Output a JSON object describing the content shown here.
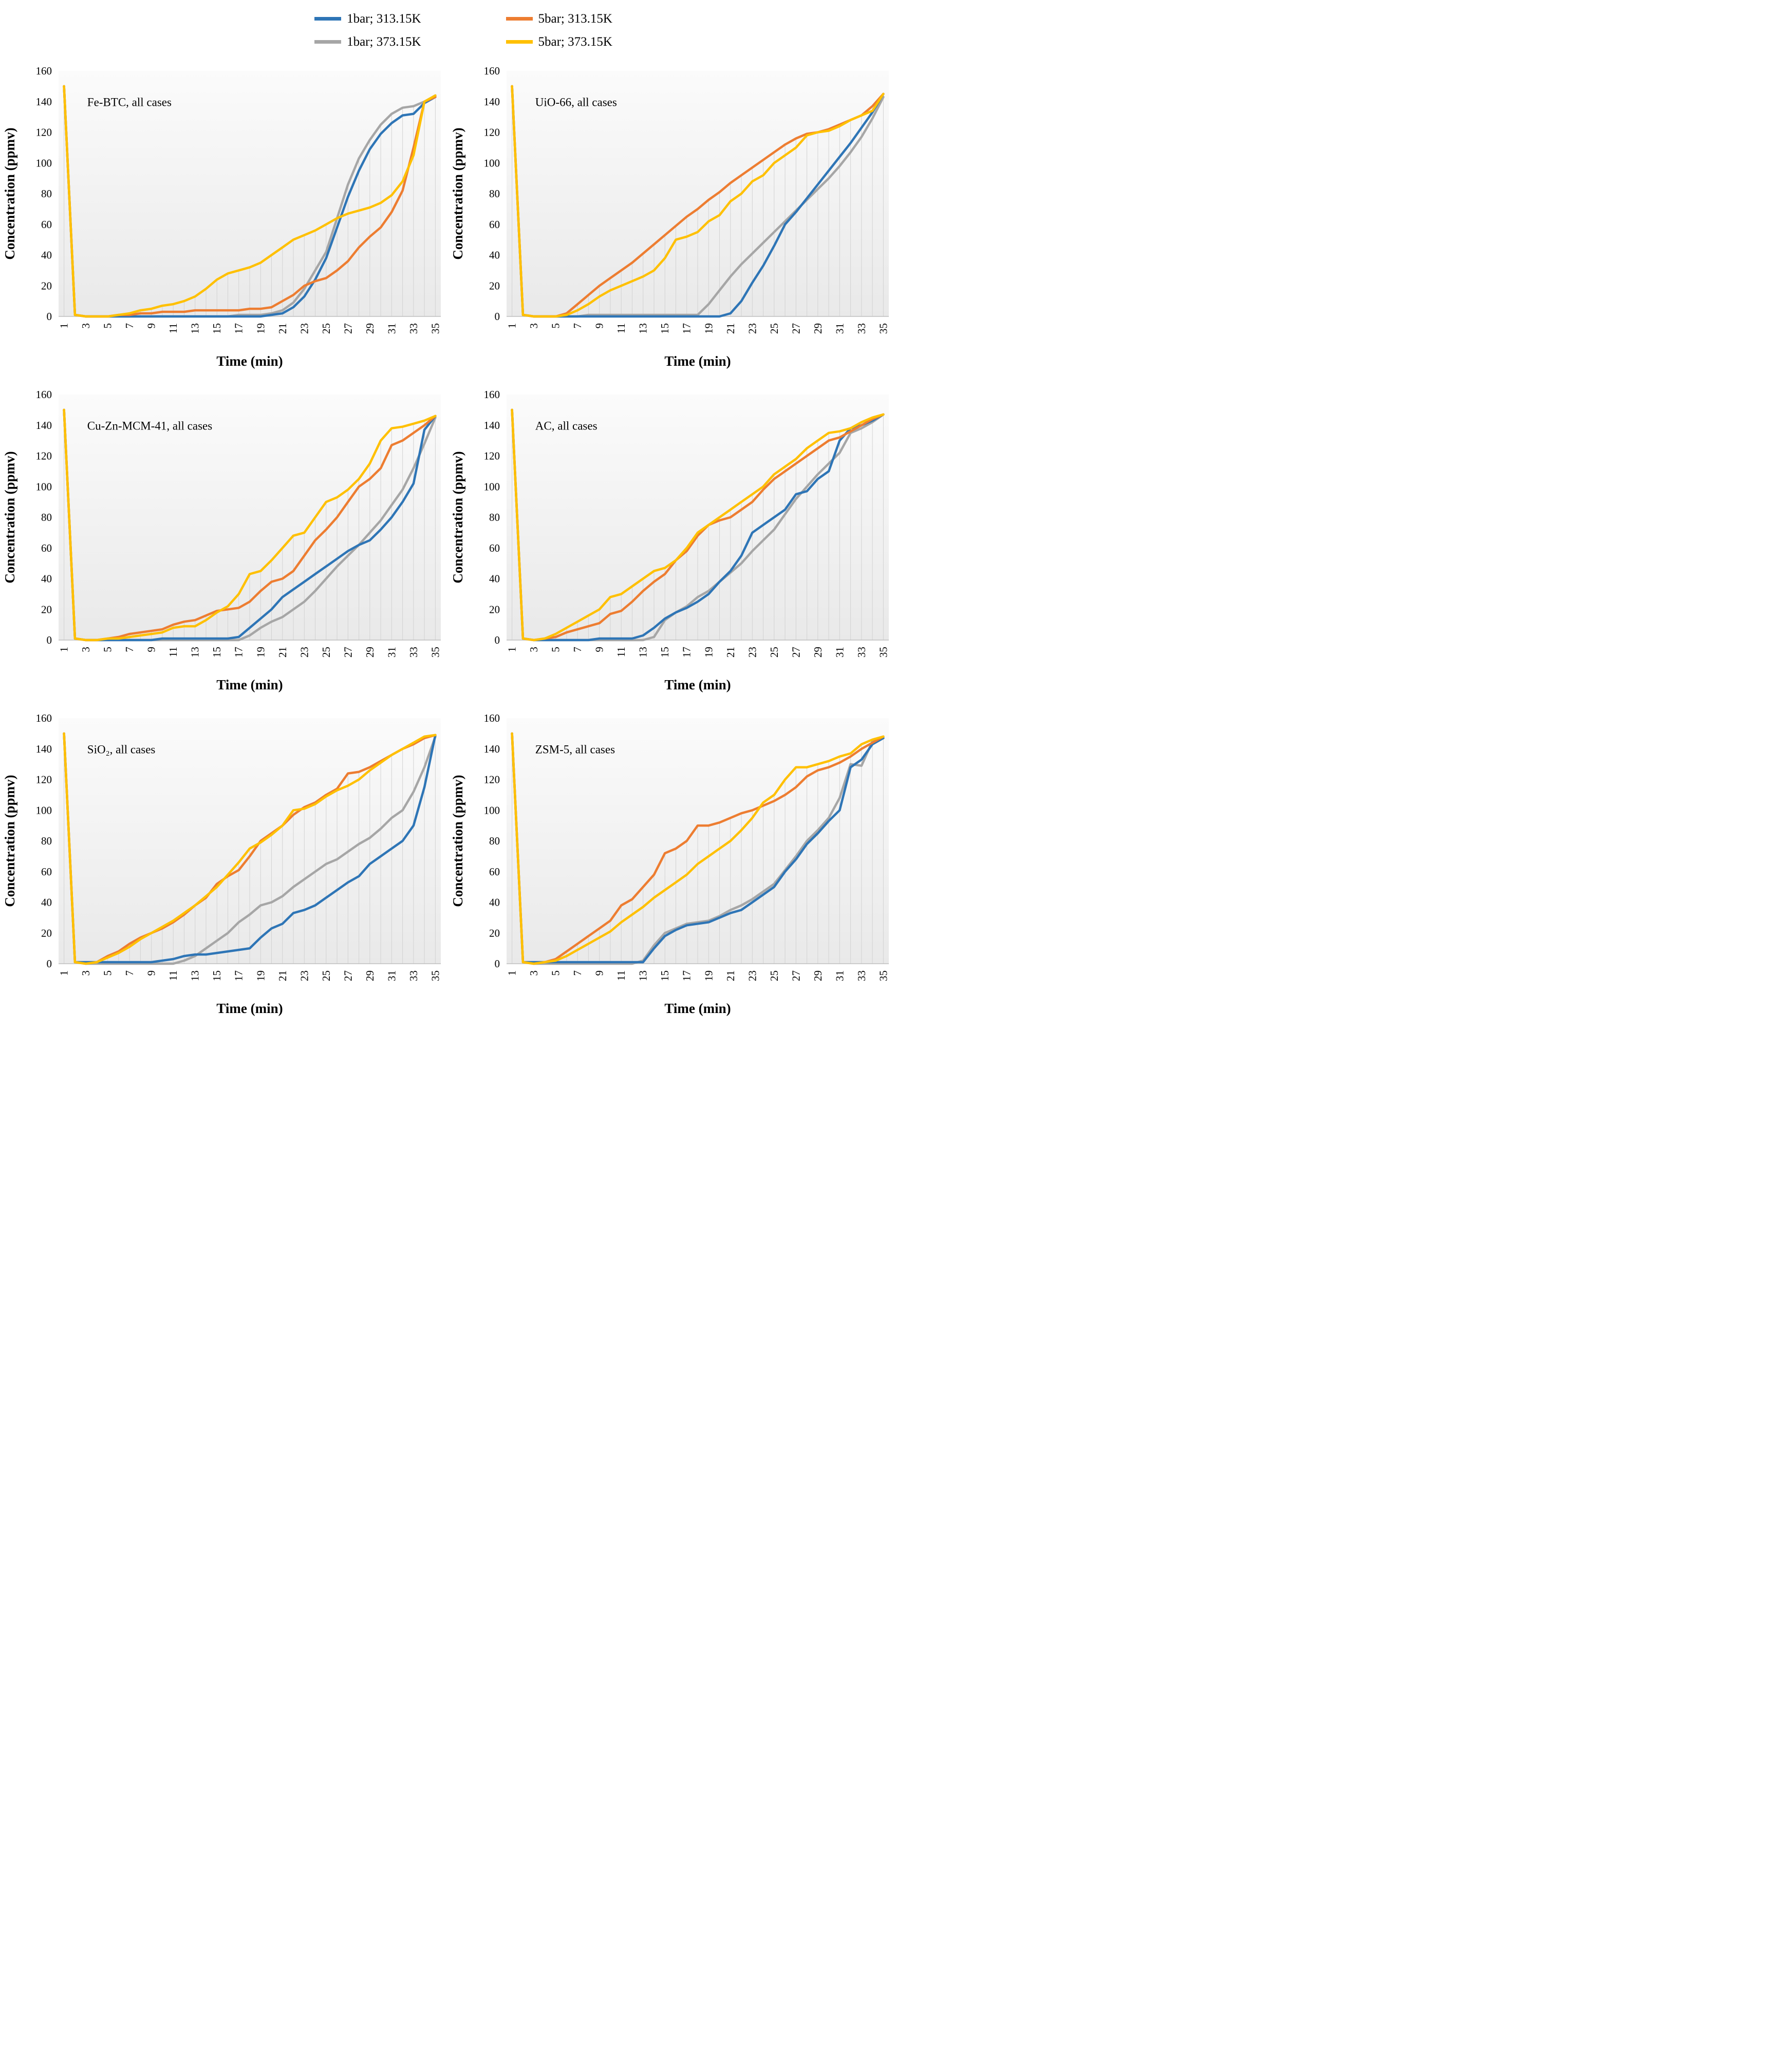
{
  "legend": {
    "items": [
      {
        "label": "1bar; 313.15K",
        "color": "#2E75B6"
      },
      {
        "label": "1bar; 373.15K",
        "color": "#A6A6A6"
      },
      {
        "label": "5bar; 313.15K",
        "color": "#ED7D31"
      },
      {
        "label": "5bar; 373.15K",
        "color": "#FFC000"
      }
    ]
  },
  "axes": {
    "xlabel": "Time (min)",
    "ylabel": "Concentration (ppmv)",
    "ylim": [
      0,
      160
    ],
    "yticks": [
      0,
      20,
      40,
      60,
      80,
      100,
      120,
      140,
      160
    ],
    "xticks": [
      1,
      3,
      5,
      7,
      9,
      11,
      13,
      15,
      17,
      19,
      21,
      23,
      25,
      27,
      29,
      31,
      33,
      35
    ],
    "x_categories": [
      1,
      2,
      3,
      4,
      5,
      6,
      7,
      8,
      9,
      10,
      11,
      12,
      13,
      14,
      15,
      16,
      17,
      18,
      19,
      20,
      21,
      22,
      23,
      24,
      25,
      26,
      27,
      28,
      29,
      30,
      31,
      32,
      33,
      34,
      35
    ],
    "grid": "vertical-drop-lines",
    "legend_position": "top-center"
  },
  "chart_data": [
    {
      "type": "line",
      "title": "Fe-BTC, all cases",
      "series": [
        {
          "name": "1bar; 313.15K",
          "color": "#2E75B6",
          "values": [
            150,
            1,
            0,
            0,
            0,
            0,
            0,
            0,
            0,
            0,
            0,
            0,
            0,
            0,
            0,
            0,
            0,
            0,
            0,
            1,
            2,
            6,
            13,
            24,
            38,
            58,
            78,
            95,
            109,
            119,
            126,
            131,
            132,
            139,
            143
          ]
        },
        {
          "name": "1bar; 373.15K",
          "color": "#A6A6A6",
          "values": [
            150,
            1,
            0,
            0,
            0,
            0,
            0,
            0,
            0,
            0,
            0,
            0,
            0,
            0,
            0,
            0,
            1,
            1,
            1,
            2,
            4,
            9,
            18,
            30,
            42,
            64,
            86,
            103,
            115,
            125,
            132,
            136,
            137,
            140,
            144
          ]
        },
        {
          "name": "5bar; 313.15K",
          "color": "#ED7D31",
          "values": [
            150,
            1,
            0,
            0,
            0,
            1,
            1,
            2,
            2,
            3,
            3,
            3,
            4,
            4,
            4,
            4,
            4,
            5,
            5,
            6,
            10,
            14,
            20,
            23,
            25,
            30,
            36,
            45,
            52,
            58,
            68,
            82,
            110,
            140,
            143
          ]
        },
        {
          "name": "5bar; 373.15K",
          "color": "#FFC000",
          "values": [
            150,
            1,
            0,
            0,
            0,
            1,
            2,
            4,
            5,
            7,
            8,
            10,
            13,
            18,
            24,
            28,
            30,
            32,
            35,
            40,
            45,
            50,
            53,
            56,
            60,
            64,
            67,
            69,
            71,
            74,
            79,
            88,
            105,
            140,
            144
          ]
        }
      ]
    },
    {
      "type": "line",
      "title": "UiO-66, all cases",
      "series": [
        {
          "name": "1bar; 313.15K",
          "color": "#2E75B6",
          "values": [
            150,
            1,
            0,
            0,
            0,
            0,
            0,
            0,
            0,
            0,
            0,
            0,
            0,
            0,
            0,
            0,
            0,
            0,
            0,
            0,
            2,
            10,
            22,
            33,
            46,
            60,
            68,
            77,
            86,
            95,
            104,
            113,
            123,
            133,
            145
          ]
        },
        {
          "name": "1bar; 373.15K",
          "color": "#A6A6A6",
          "values": [
            150,
            1,
            0,
            0,
            0,
            0,
            0,
            1,
            1,
            1,
            1,
            1,
            1,
            1,
            1,
            1,
            1,
            1,
            8,
            17,
            26,
            34,
            41,
            48,
            55,
            62,
            69,
            76,
            83,
            90,
            98,
            107,
            117,
            129,
            143
          ]
        },
        {
          "name": "5bar; 313.15K",
          "color": "#ED7D31",
          "values": [
            150,
            1,
            0,
            0,
            0,
            2,
            8,
            14,
            20,
            25,
            30,
            35,
            41,
            47,
            53,
            59,
            65,
            70,
            76,
            81,
            87,
            92,
            97,
            102,
            107,
            112,
            116,
            119,
            120,
            122,
            125,
            128,
            131,
            137,
            145
          ]
        },
        {
          "name": "5bar; 373.15K",
          "color": "#FFC000",
          "values": [
            150,
            1,
            0,
            0,
            0,
            1,
            4,
            8,
            13,
            17,
            20,
            23,
            26,
            30,
            38,
            50,
            52,
            55,
            62,
            66,
            75,
            80,
            88,
            92,
            100,
            105,
            110,
            118,
            120,
            121,
            124,
            128,
            131,
            134,
            145
          ]
        }
      ]
    },
    {
      "type": "line",
      "title": "Cu-Zn-MCM-41, all cases",
      "series": [
        {
          "name": "1bar; 313.15K",
          "color": "#2E75B6",
          "values": [
            150,
            1,
            0,
            0,
            0,
            0,
            0,
            0,
            0,
            1,
            1,
            1,
            1,
            1,
            1,
            1,
            2,
            8,
            14,
            20,
            28,
            33,
            38,
            43,
            48,
            53,
            58,
            62,
            65,
            72,
            80,
            90,
            102,
            137,
            146
          ]
        },
        {
          "name": "1bar; 373.15K",
          "color": "#A6A6A6",
          "values": [
            150,
            1,
            0,
            0,
            0,
            0,
            0,
            0,
            0,
            0,
            0,
            0,
            0,
            0,
            0,
            0,
            0,
            3,
            8,
            12,
            15,
            20,
            25,
            32,
            40,
            48,
            55,
            62,
            70,
            78,
            88,
            98,
            112,
            128,
            145
          ]
        },
        {
          "name": "5bar; 313.15K",
          "color": "#ED7D31",
          "values": [
            150,
            1,
            0,
            0,
            1,
            2,
            4,
            5,
            6,
            7,
            10,
            12,
            13,
            16,
            19,
            20,
            21,
            25,
            32,
            38,
            40,
            45,
            55,
            65,
            72,
            80,
            90,
            100,
            105,
            112,
            127,
            130,
            135,
            140,
            146
          ]
        },
        {
          "name": "5bar; 373.15K",
          "color": "#FFC000",
          "values": [
            150,
            1,
            0,
            0,
            1,
            1,
            2,
            3,
            4,
            5,
            8,
            9,
            9,
            13,
            18,
            22,
            30,
            43,
            45,
            52,
            60,
            68,
            70,
            80,
            90,
            93,
            98,
            105,
            115,
            130,
            138,
            139,
            141,
            143,
            146
          ]
        }
      ]
    },
    {
      "type": "line",
      "title": "AC, all cases",
      "series": [
        {
          "name": "1bar; 313.15K",
          "color": "#2E75B6",
          "values": [
            150,
            1,
            0,
            0,
            0,
            0,
            0,
            0,
            1,
            1,
            1,
            1,
            3,
            8,
            14,
            18,
            21,
            25,
            30,
            38,
            45,
            55,
            70,
            75,
            80,
            85,
            95,
            97,
            105,
            110,
            130,
            138,
            140,
            143,
            147
          ]
        },
        {
          "name": "1bar; 373.15K",
          "color": "#A6A6A6",
          "values": [
            150,
            1,
            0,
            0,
            0,
            0,
            0,
            0,
            0,
            0,
            0,
            0,
            0,
            2,
            13,
            18,
            22,
            28,
            32,
            38,
            44,
            50,
            58,
            65,
            72,
            82,
            92,
            100,
            108,
            115,
            122,
            135,
            138,
            142,
            147
          ]
        },
        {
          "name": "5bar; 313.15K",
          "color": "#ED7D31",
          "values": [
            150,
            1,
            0,
            1,
            2,
            5,
            7,
            9,
            11,
            17,
            19,
            25,
            32,
            38,
            43,
            52,
            58,
            68,
            75,
            78,
            80,
            85,
            90,
            98,
            105,
            110,
            115,
            120,
            125,
            130,
            132,
            136,
            140,
            144,
            147
          ]
        },
        {
          "name": "5bar; 373.15K",
          "color": "#FFC000",
          "values": [
            150,
            1,
            0,
            1,
            4,
            8,
            12,
            16,
            20,
            28,
            30,
            35,
            40,
            45,
            47,
            52,
            60,
            70,
            75,
            80,
            85,
            90,
            95,
            100,
            108,
            113,
            118,
            125,
            130,
            135,
            136,
            138,
            142,
            145,
            147
          ]
        }
      ]
    },
    {
      "type": "line",
      "title": "SiO₂, all cases",
      "series": [
        {
          "name": "1bar; 313.15K",
          "color": "#2E75B6",
          "values": [
            150,
            1,
            1,
            1,
            1,
            1,
            1,
            1,
            1,
            2,
            3,
            5,
            6,
            6,
            7,
            8,
            9,
            10,
            17,
            23,
            26,
            33,
            35,
            38,
            43,
            48,
            53,
            57,
            65,
            70,
            75,
            80,
            90,
            115,
            149
          ]
        },
        {
          "name": "1bar; 373.15K",
          "color": "#A6A6A6",
          "values": [
            150,
            1,
            0,
            0,
            0,
            0,
            0,
            0,
            0,
            0,
            0,
            2,
            5,
            10,
            15,
            20,
            27,
            32,
            38,
            40,
            44,
            50,
            55,
            60,
            65,
            68,
            73,
            78,
            82,
            88,
            95,
            100,
            112,
            128,
            148
          ]
        },
        {
          "name": "5bar; 313.15K",
          "color": "#ED7D31",
          "values": [
            150,
            1,
            0,
            1,
            5,
            8,
            13,
            17,
            20,
            23,
            27,
            32,
            38,
            43,
            52,
            57,
            61,
            70,
            80,
            85,
            90,
            97,
            102,
            105,
            110,
            114,
            124,
            125,
            128,
            132,
            136,
            140,
            143,
            147,
            149
          ]
        },
        {
          "name": "5bar; 373.15K",
          "color": "#FFC000",
          "values": [
            150,
            1,
            0,
            1,
            4,
            7,
            11,
            16,
            20,
            24,
            28,
            33,
            38,
            44,
            50,
            58,
            66,
            75,
            79,
            84,
            90,
            100,
            101,
            104,
            109,
            113,
            116,
            120,
            126,
            131,
            136,
            140,
            144,
            148,
            149
          ]
        }
      ]
    },
    {
      "type": "line",
      "title": "ZSM-5, all cases",
      "series": [
        {
          "name": "1bar; 313.15K",
          "color": "#2E75B6",
          "values": [
            150,
            1,
            1,
            1,
            1,
            1,
            1,
            1,
            1,
            1,
            1,
            1,
            1,
            10,
            18,
            22,
            25,
            26,
            27,
            30,
            33,
            35,
            40,
            45,
            50,
            60,
            68,
            78,
            85,
            93,
            100,
            128,
            133,
            143,
            147
          ]
        },
        {
          "name": "1bar; 373.15K",
          "color": "#A6A6A6",
          "values": [
            150,
            1,
            0,
            0,
            0,
            0,
            0,
            0,
            0,
            0,
            0,
            0,
            2,
            12,
            20,
            23,
            26,
            27,
            28,
            31,
            35,
            38,
            42,
            47,
            52,
            61,
            70,
            80,
            87,
            95,
            108,
            130,
            129,
            145,
            147
          ]
        },
        {
          "name": "5bar; 313.15K",
          "color": "#ED7D31",
          "values": [
            150,
            1,
            0,
            1,
            3,
            8,
            13,
            18,
            23,
            28,
            38,
            42,
            50,
            58,
            72,
            75,
            80,
            90,
            90,
            92,
            95,
            98,
            100,
            103,
            106,
            110,
            115,
            122,
            126,
            128,
            131,
            135,
            140,
            144,
            148
          ]
        },
        {
          "name": "5bar; 373.15K",
          "color": "#FFC000",
          "values": [
            150,
            1,
            0,
            1,
            2,
            5,
            9,
            13,
            17,
            21,
            27,
            32,
            37,
            43,
            48,
            53,
            58,
            65,
            70,
            75,
            80,
            87,
            95,
            105,
            110,
            120,
            128,
            128,
            130,
            132,
            135,
            137,
            143,
            146,
            148
          ]
        }
      ]
    }
  ]
}
